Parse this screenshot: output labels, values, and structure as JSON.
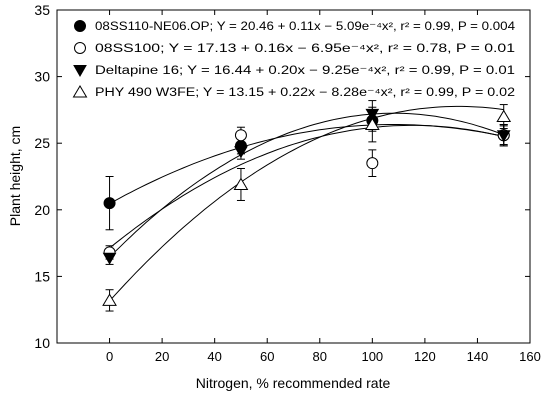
{
  "chart_data": {
    "type": "scatter",
    "xlabel": "Nitrogen, % recommended rate",
    "ylabel": "Plant height, cm",
    "xlim": [
      -20,
      160
    ],
    "ylim": [
      10,
      35
    ],
    "xticks": [
      0,
      20,
      40,
      60,
      80,
      100,
      120,
      140,
      160
    ],
    "yticks": [
      10,
      15,
      20,
      25,
      30,
      35
    ],
    "legend_position": "top-left",
    "series": [
      {
        "name": "08SS110-NE06.OP",
        "legend_text": "08SS110-NE06.OP; Y = 20.46 + 0.11x − 5.09e⁻⁴x², r² = 0.99, P = 0.004",
        "marker": "filled-circle",
        "fit": [
          20.46,
          0.11,
          -0.000509
        ],
        "points": [
          {
            "x": 0,
            "y": 20.5,
            "err": 2.0
          },
          {
            "x": 50,
            "y": 24.8,
            "err": 0.6
          },
          {
            "x": 100,
            "y": 26.7,
            "err": 0.8
          },
          {
            "x": 150,
            "y": 25.6,
            "err": 0.8
          }
        ]
      },
      {
        "name": "08SS100",
        "legend_text": "08SS100; Y = 17.13 + 0.16x − 6.95e⁻⁴x², r² = 0.78, P = 0.01",
        "marker": "open-circle",
        "fit": [
          17.13,
          0.16,
          -0.000695
        ],
        "points": [
          {
            "x": 0,
            "y": 16.8,
            "err": 0.5
          },
          {
            "x": 50,
            "y": 25.6,
            "err": 0.6
          },
          {
            "x": 100,
            "y": 23.5,
            "err": 1.0
          },
          {
            "x": 150,
            "y": 25.6,
            "err": 0.8
          }
        ]
      },
      {
        "name": "Deltapine 16",
        "legend_text": "Deltapine 16; Y = 16.44 + 0.20x − 9.25e⁻⁴x², r² = 0.99, P = 0.01",
        "marker": "filled-triangle-down",
        "fit": [
          16.44,
          0.2,
          -0.000925
        ],
        "points": [
          {
            "x": 0,
            "y": 16.4,
            "err": 0.5
          },
          {
            "x": 50,
            "y": 24.4,
            "err": 0.6
          },
          {
            "x": 100,
            "y": 27.2,
            "err": 1.0
          },
          {
            "x": 150,
            "y": 25.6,
            "err": 0.7
          }
        ]
      },
      {
        "name": "PHY 490 W3FE",
        "legend_text": "PHY 490 W3FE; Y = 13.15 + 0.22x − 8.28e⁻⁴x², r² = 0.99, P = 0.02",
        "marker": "open-triangle-up",
        "fit": [
          13.15,
          0.22,
          -0.000828
        ],
        "points": [
          {
            "x": 0,
            "y": 13.2,
            "err": 0.8
          },
          {
            "x": 50,
            "y": 21.9,
            "err": 1.2
          },
          {
            "x": 100,
            "y": 26.4,
            "err": 1.3
          },
          {
            "x": 150,
            "y": 27.0,
            "err": 0.9
          }
        ]
      }
    ]
  }
}
